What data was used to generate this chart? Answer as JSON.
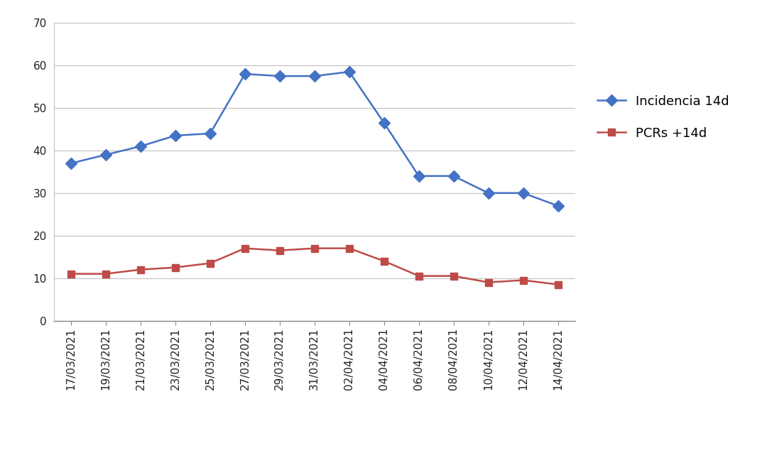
{
  "dates": [
    "17/03/2021",
    "19/03/2021",
    "21/03/2021",
    "23/03/2021",
    "25/03/2021",
    "27/03/2021",
    "29/03/2021",
    "31/03/2021",
    "02/04/2021",
    "04/04/2021",
    "06/04/2021",
    "08/04/2021",
    "10/04/2021",
    "12/04/2021",
    "14/04/2021"
  ],
  "incidencia": [
    37,
    39,
    41,
    43.5,
    44,
    58,
    57.5,
    57.5,
    58.5,
    46.5,
    34,
    34,
    30,
    30,
    27
  ],
  "pcrs": [
    11,
    11,
    12,
    12.5,
    13.5,
    17,
    16.5,
    17,
    17,
    14,
    10.5,
    10.5,
    9,
    9.5,
    8.5
  ],
  "incidencia_color": "#4472C4",
  "pcrs_color": "#BE4B48",
  "legend_labels": [
    "Incidencia 14d",
    "PCRs +14d"
  ],
  "ylim": [
    0,
    70
  ],
  "yticks": [
    0,
    10,
    20,
    30,
    40,
    50,
    60,
    70
  ],
  "background_color": "#FFFFFF",
  "grid_color": "#C0C0C0",
  "linewidth": 1.8,
  "markersize_incidencia": 8,
  "markersize_pcrs": 7,
  "tick_fontsize": 11,
  "legend_fontsize": 13
}
